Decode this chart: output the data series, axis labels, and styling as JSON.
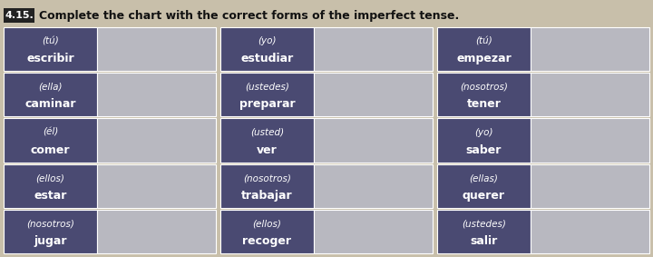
{
  "title_number": "4.15.",
  "title_text": "Complete the chart with the correct forms of the imperfect tense.",
  "bg_color": "#c8bfaa",
  "cell_dark_color": "#4a4a72",
  "cell_answer_color": "#b8b8c0",
  "text_light": "#ffffff",
  "text_dark": "#111111",
  "rows": [
    [
      {
        "subject": "(tú)",
        "verb": "escribir"
      },
      {
        "subject": "(yo)",
        "verb": "estudiar"
      },
      {
        "subject": "(tú)",
        "verb": "empezar"
      }
    ],
    [
      {
        "subject": "(ella)",
        "verb": "caminar"
      },
      {
        "subject": "(ustedes)",
        "verb": "preparar"
      },
      {
        "subject": "(nosotros)",
        "verb": "tener"
      }
    ],
    [
      {
        "subject": "(él)",
        "verb": "comer"
      },
      {
        "subject": "(usted)",
        "verb": "ver"
      },
      {
        "subject": "(yo)",
        "verb": "saber"
      }
    ],
    [
      {
        "subject": "(ellos)",
        "verb": "estar"
      },
      {
        "subject": "(nosotros)",
        "verb": "trabajar"
      },
      {
        "subject": "(ellas)",
        "verb": "querer"
      }
    ],
    [
      {
        "subject": "(nosotros)",
        "verb": "jugar"
      },
      {
        "subject": "(ellos)",
        "verb": "recoger"
      },
      {
        "subject": "(ustedes)",
        "verb": "salir"
      }
    ]
  ],
  "figsize": [
    7.2,
    2.83
  ],
  "dpi": 100
}
